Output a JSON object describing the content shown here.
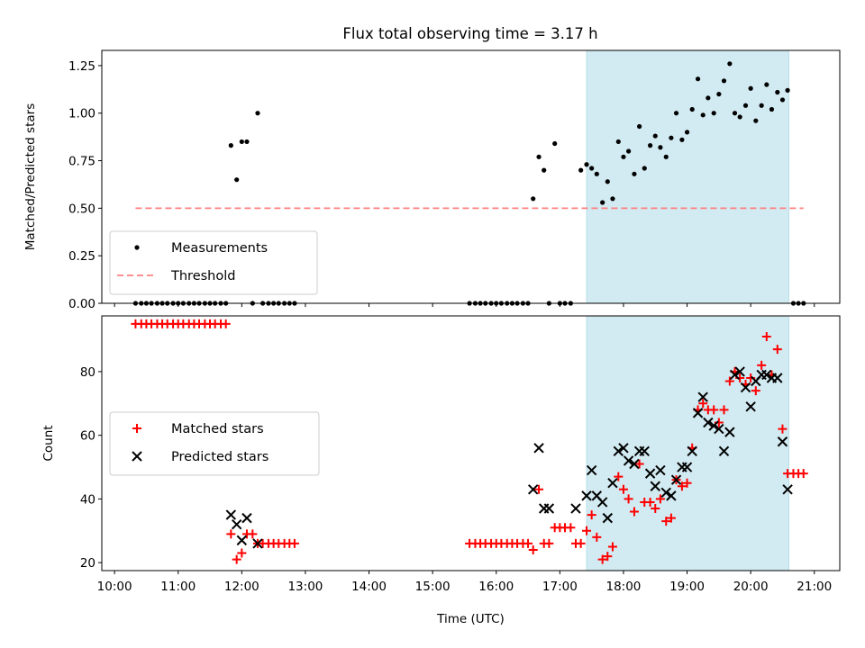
{
  "title": "Flux total observing time = 3.17 h",
  "chart_data": [
    {
      "type": "scatter",
      "ylabel": "Matched/Predicted stars",
      "xlim": [
        9.8,
        21.4
      ],
      "ylim": [
        0.0,
        1.33
      ],
      "yticks": [
        "0.00",
        "0.25",
        "0.50",
        "0.75",
        "1.00",
        "1.25"
      ],
      "ytick_values": [
        0,
        0.25,
        0.5,
        0.75,
        1.0,
        1.25
      ],
      "grid": false,
      "legend_position": "lower-left",
      "shaded_span": {
        "x0": 17.42,
        "x1": 20.6,
        "color": "#add8e6"
      },
      "series": [
        {
          "name": "Measurements",
          "marker": "dot",
          "color": "#000000",
          "x": [
            10.33,
            10.42,
            10.5,
            10.58,
            10.67,
            10.75,
            10.83,
            10.92,
            11.0,
            11.08,
            11.17,
            11.25,
            11.33,
            11.42,
            11.5,
            11.58,
            11.67,
            11.75,
            11.83,
            11.92,
            12.0,
            12.08,
            12.17,
            12.25,
            12.33,
            12.42,
            12.5,
            12.58,
            12.67,
            12.75,
            12.83,
            15.58,
            15.67,
            15.75,
            15.83,
            15.92,
            16.0,
            16.08,
            16.17,
            16.25,
            16.33,
            16.42,
            16.5,
            16.58,
            16.67,
            16.75,
            16.83,
            16.92,
            17.0,
            17.08,
            17.17,
            17.33,
            17.42,
            17.5,
            17.58,
            17.67,
            17.75,
            17.83,
            17.92,
            18.0,
            18.08,
            18.17,
            18.25,
            18.33,
            18.42,
            18.5,
            18.58,
            18.67,
            18.75,
            18.83,
            18.92,
            19.0,
            19.08,
            19.17,
            19.25,
            19.33,
            19.42,
            19.5,
            19.58,
            19.67,
            19.75,
            19.83,
            19.92,
            20.0,
            20.08,
            20.17,
            20.25,
            20.33,
            20.42,
            20.5,
            20.58,
            20.67,
            20.75,
            20.83
          ],
          "y": [
            0,
            0,
            0,
            0,
            0,
            0,
            0,
            0,
            0,
            0,
            0,
            0,
            0,
            0,
            0,
            0,
            0,
            0,
            0.83,
            0.65,
            0.85,
            0.85,
            0,
            1.0,
            0,
            0,
            0,
            0,
            0,
            0,
            0,
            0,
            0,
            0,
            0,
            0,
            0,
            0,
            0,
            0,
            0,
            0,
            0,
            0.55,
            0.77,
            0.7,
            0,
            0.84,
            0,
            0,
            0,
            0.7,
            0.73,
            0.71,
            0.68,
            0.53,
            0.64,
            0.55,
            0.85,
            0.77,
            0.8,
            0.68,
            0.93,
            0.71,
            0.83,
            0.88,
            0.82,
            0.77,
            0.87,
            1.0,
            0.86,
            0.9,
            1.02,
            1.18,
            0.99,
            1.08,
            1.0,
            1.1,
            1.17,
            1.26,
            1.0,
            0.98,
            1.04,
            1.13,
            0.96,
            1.04,
            1.15,
            1.02,
            1.11,
            1.07,
            1.12,
            0,
            0,
            0
          ]
        },
        {
          "name": "Threshold",
          "marker": "dashed-line",
          "color": "#ff8080",
          "x": [
            10.33,
            20.83
          ],
          "y": [
            0.5,
            0.5
          ]
        }
      ]
    },
    {
      "type": "scatter",
      "xlabel": "Time (UTC)",
      "ylabel": "Count",
      "xlim": [
        9.8,
        21.4
      ],
      "ylim": [
        17.5,
        97.5
      ],
      "xticks": [
        "10:00",
        "11:00",
        "12:00",
        "13:00",
        "14:00",
        "15:00",
        "16:00",
        "17:00",
        "18:00",
        "19:00",
        "20:00",
        "21:00"
      ],
      "xtick_values": [
        10,
        11,
        12,
        13,
        14,
        15,
        16,
        17,
        18,
        19,
        20,
        21
      ],
      "yticks": [
        "20",
        "40",
        "60",
        "80"
      ],
      "ytick_values": [
        20,
        40,
        60,
        80
      ],
      "grid": false,
      "legend_position": "center-left",
      "shaded_span": {
        "x0": 17.42,
        "x1": 20.6,
        "color": "#add8e6"
      },
      "series": [
        {
          "name": "Matched stars",
          "marker": "plus",
          "color": "#ff0000",
          "x": [
            10.33,
            10.42,
            10.5,
            10.58,
            10.67,
            10.75,
            10.83,
            10.92,
            11.0,
            11.08,
            11.17,
            11.25,
            11.33,
            11.42,
            11.5,
            11.58,
            11.67,
            11.75,
            11.83,
            11.92,
            12.0,
            12.08,
            12.17,
            12.25,
            12.33,
            12.42,
            12.5,
            12.58,
            12.67,
            12.75,
            12.83,
            15.58,
            15.67,
            15.75,
            15.83,
            15.92,
            16.0,
            16.08,
            16.17,
            16.25,
            16.33,
            16.42,
            16.5,
            16.58,
            16.67,
            16.75,
            16.83,
            16.92,
            17.0,
            17.08,
            17.17,
            17.25,
            17.33,
            17.42,
            17.5,
            17.58,
            17.67,
            17.75,
            17.83,
            17.92,
            18.0,
            18.08,
            18.17,
            18.25,
            18.33,
            18.42,
            18.5,
            18.58,
            18.67,
            18.75,
            18.83,
            18.92,
            19.0,
            19.08,
            19.17,
            19.25,
            19.33,
            19.42,
            19.5,
            19.58,
            19.67,
            19.75,
            19.83,
            19.92,
            20.0,
            20.08,
            20.17,
            20.25,
            20.33,
            20.42,
            20.5,
            20.58,
            20.67,
            20.75,
            20.83
          ],
          "y": [
            95,
            95,
            95,
            95,
            95,
            95,
            95,
            95,
            95,
            95,
            95,
            95,
            95,
            95,
            95,
            95,
            95,
            95,
            29,
            21,
            23,
            29,
            29,
            26,
            26,
            26,
            26,
            26,
            26,
            26,
            26,
            26,
            26,
            26,
            26,
            26,
            26,
            26,
            26,
            26,
            26,
            26,
            26,
            24,
            43,
            26,
            26,
            31,
            31,
            31,
            31,
            26,
            26,
            30,
            35,
            28,
            21,
            22,
            25,
            47,
            43,
            40,
            36,
            51,
            39,
            39,
            37,
            40,
            33,
            34,
            46,
            44,
            45,
            56,
            68,
            70,
            68,
            68,
            64,
            68,
            77,
            80,
            78,
            76,
            78,
            74,
            82,
            91,
            79,
            87,
            62,
            48,
            48,
            48,
            48
          ]
        },
        {
          "name": "Predicted stars",
          "marker": "x",
          "color": "#000000",
          "x": [
            11.83,
            11.92,
            12.0,
            12.08,
            12.25,
            16.58,
            16.67,
            16.75,
            16.83,
            17.25,
            17.42,
            17.5,
            17.58,
            17.67,
            17.75,
            17.83,
            17.92,
            18.0,
            18.08,
            18.17,
            18.25,
            18.33,
            18.42,
            18.5,
            18.58,
            18.67,
            18.75,
            18.83,
            18.92,
            19.0,
            19.08,
            19.17,
            19.25,
            19.33,
            19.42,
            19.5,
            19.58,
            19.67,
            19.75,
            19.83,
            19.92,
            20.0,
            20.08,
            20.17,
            20.25,
            20.33,
            20.42,
            20.5,
            20.58
          ],
          "y": [
            35,
            32,
            27,
            34,
            26,
            43,
            56,
            37,
            37,
            37,
            41,
            49,
            41,
            39,
            34,
            45,
            55,
            56,
            52,
            51,
            55,
            55,
            48,
            44,
            49,
            42,
            41,
            46,
            50,
            50,
            55,
            67,
            72,
            64,
            63,
            62,
            55,
            61,
            79,
            80,
            75,
            69,
            77,
            79,
            79,
            78,
            78,
            58,
            43
          ]
        }
      ]
    }
  ]
}
